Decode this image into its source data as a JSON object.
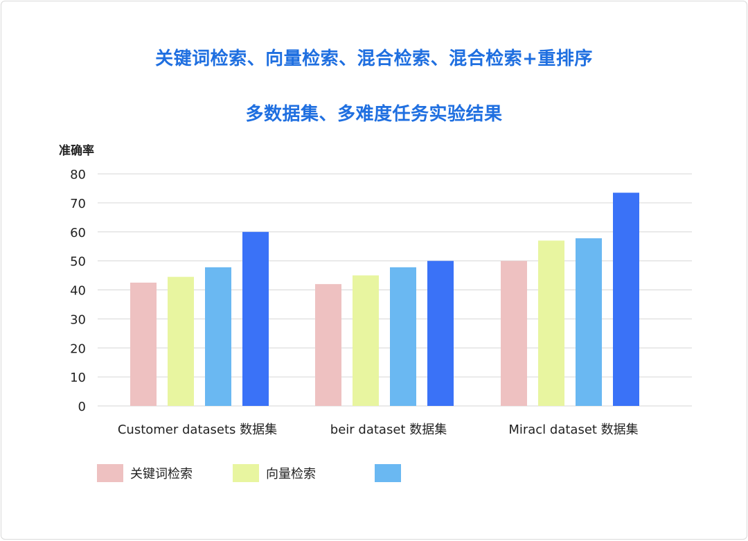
{
  "titles": {
    "line1": "关键词检索、向量检索、混合检索、混合检索+重排序",
    "line2": "多数据集、多难度任务实验结果"
  },
  "chart_data": {
    "type": "bar",
    "ylabel": "准确率",
    "ylim": [
      0,
      80
    ],
    "yticks": [
      "0",
      "10",
      "20",
      "30",
      "40",
      "50",
      "60",
      "70",
      "80"
    ],
    "grid": true,
    "categories": [
      "Customer datasets 数据集",
      "beir dataset 数据集",
      "Miracl dataset 数据集"
    ],
    "series": [
      {
        "name": "关键词检索",
        "color": "#eec1c1",
        "values": [
          42.5,
          42,
          50
        ]
      },
      {
        "name": "向量检索",
        "color": "#e8f5a0",
        "values": [
          44.5,
          45,
          57
        ]
      },
      {
        "name": "",
        "color": "#6ab8f2",
        "values": [
          47.8,
          47.8,
          57.8
        ]
      },
      {
        "name": "",
        "color": "#3a72f7",
        "values": [
          60,
          50,
          73.5
        ]
      }
    ],
    "legend_position": "bottom"
  }
}
